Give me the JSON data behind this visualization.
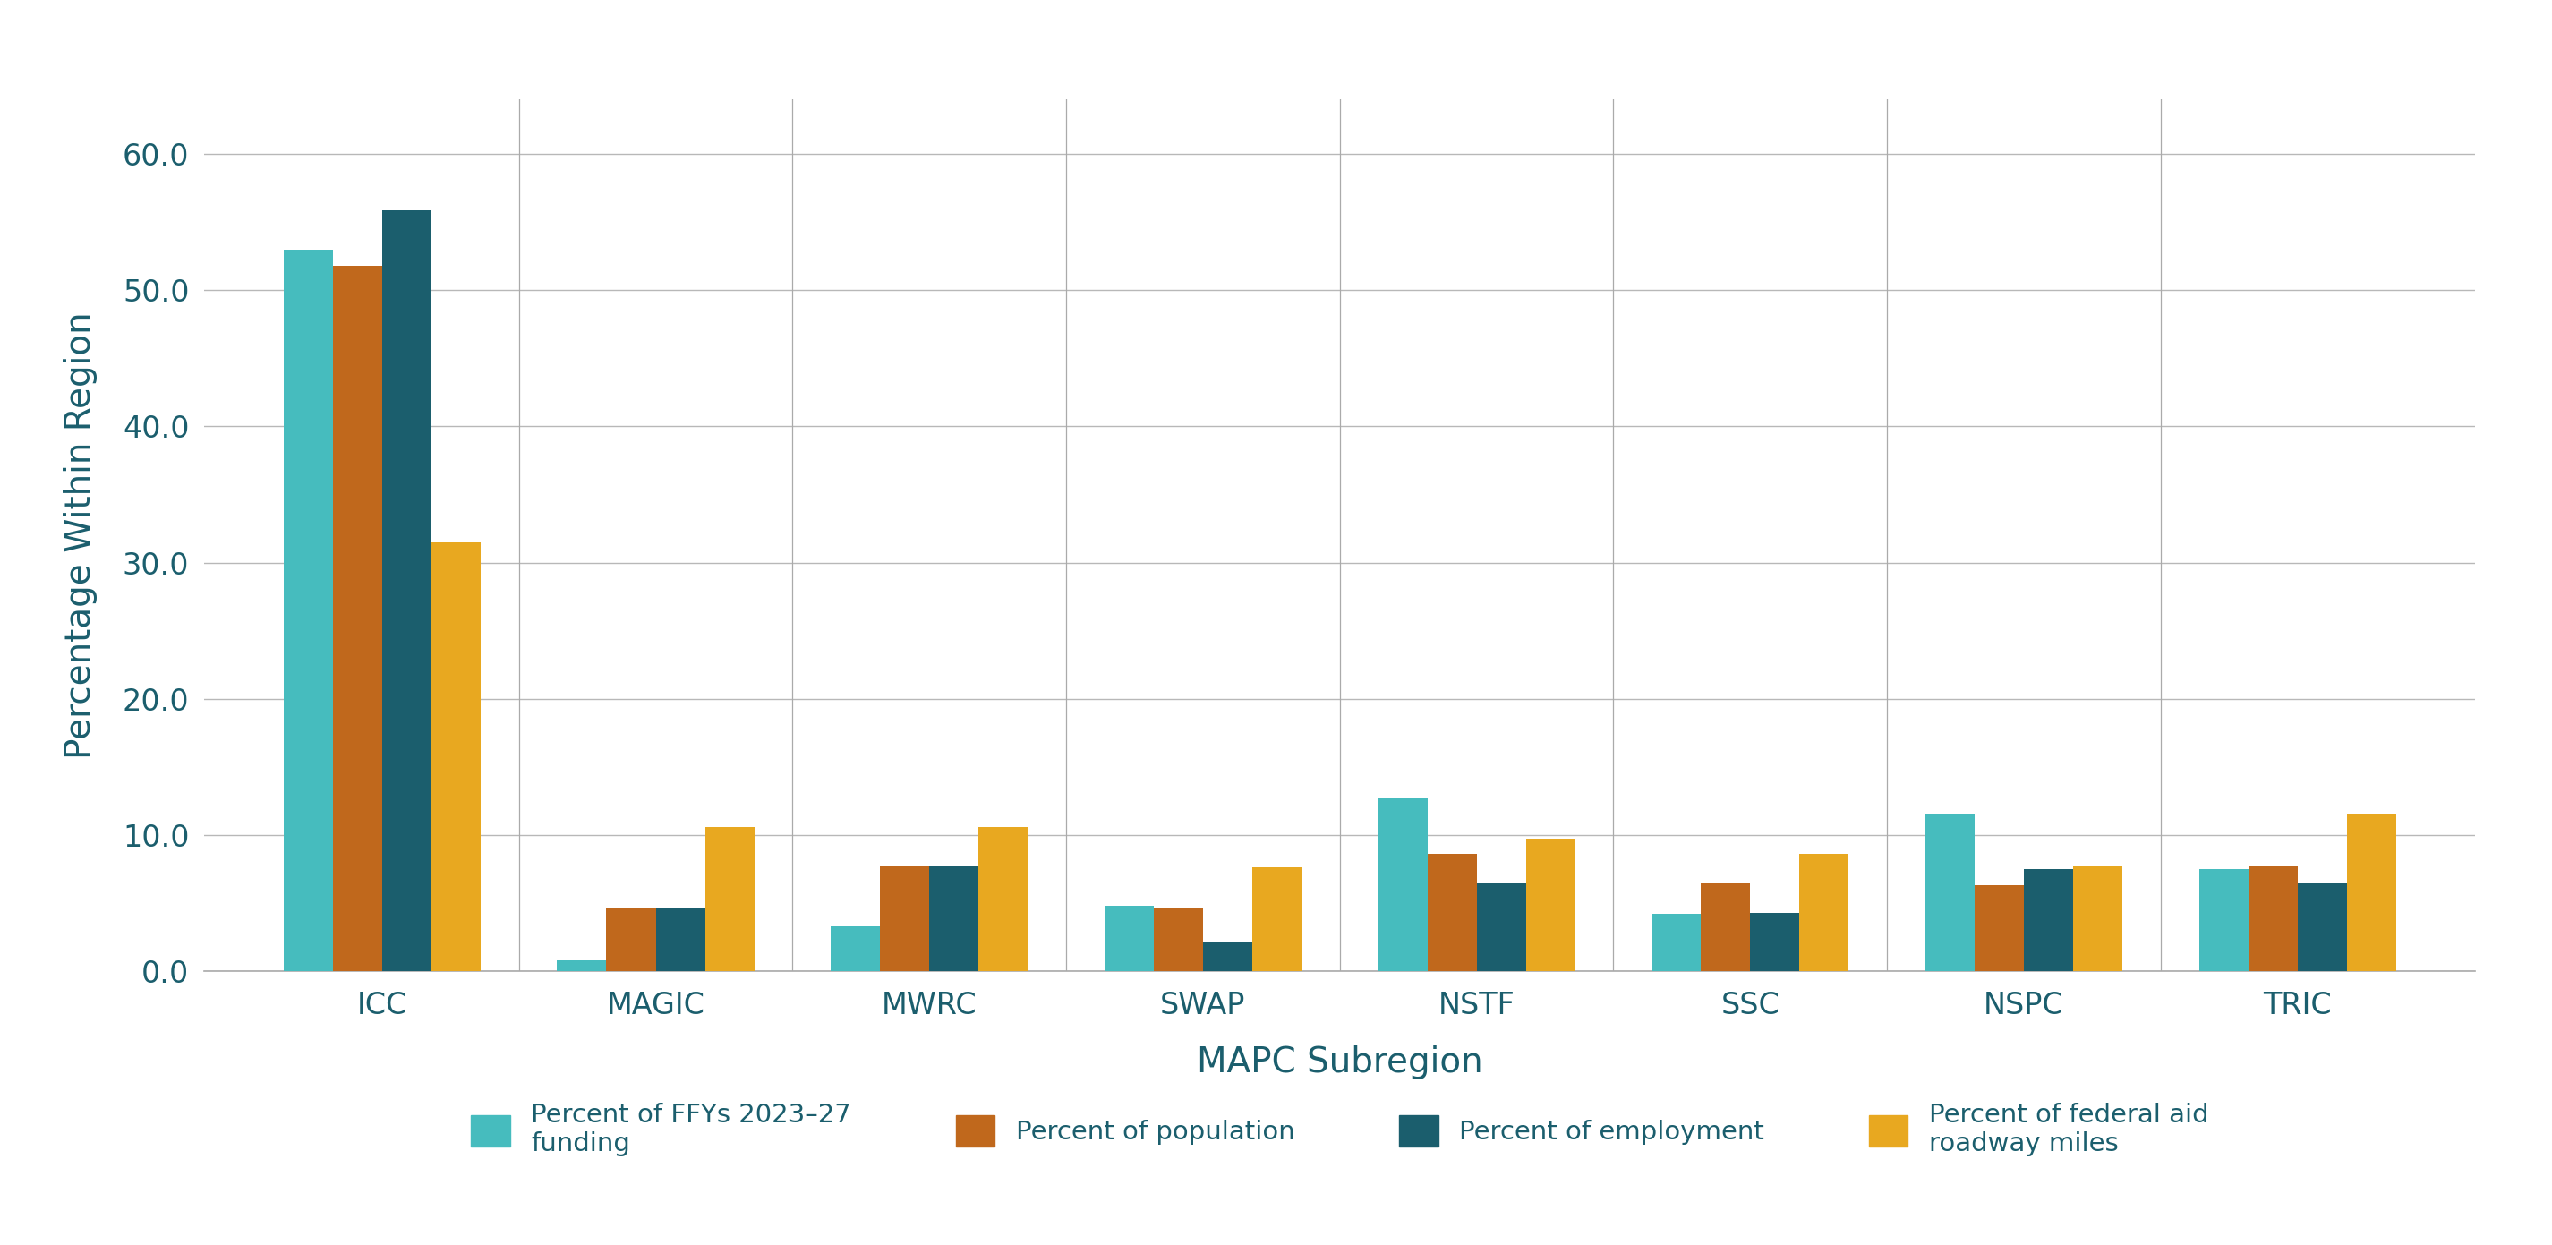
{
  "subregions": [
    "ICC",
    "MAGIC",
    "MWRC",
    "SWAP",
    "NSTF",
    "SSC",
    "NSPC",
    "TRIC"
  ],
  "series": {
    "pct_funding": [
      53.0,
      0.8,
      3.3,
      4.8,
      12.7,
      4.2,
      11.5,
      7.5
    ],
    "pct_population": [
      51.8,
      4.6,
      7.7,
      4.6,
      8.6,
      6.5,
      6.3,
      7.7
    ],
    "pct_employment": [
      55.9,
      4.6,
      7.7,
      2.2,
      6.5,
      4.3,
      7.5,
      6.5
    ],
    "pct_roadway": [
      31.5,
      10.6,
      10.6,
      7.6,
      9.7,
      8.6,
      7.7,
      11.5
    ]
  },
  "colors": {
    "pct_funding": "#46BCBE",
    "pct_population": "#C0681C",
    "pct_employment": "#1B5E6D",
    "pct_roadway": "#E8A820"
  },
  "legend_labels": {
    "pct_funding": "Percent of FFYs 2023–27\nfunding",
    "pct_population": "Percent of population",
    "pct_employment": "Percent of employment",
    "pct_roadway": "Percent of federal aid\nroadway miles"
  },
  "xlabel": "MAPC Subregion",
  "ylabel": "Percentage Within Region",
  "ylim": [
    0,
    64
  ],
  "yticks": [
    0.0,
    10.0,
    20.0,
    30.0,
    40.0,
    50.0,
    60.0
  ],
  "ytick_labels": [
    "0.0",
    "10.0",
    "20.0",
    "30.0",
    "40.0",
    "50.0",
    "60.0"
  ],
  "background_color": "#ffffff",
  "grid_color": "#b8b8b8",
  "tick_color": "#1B5E6D",
  "label_color": "#1B5E6D",
  "bar_width": 0.18,
  "separator_color": "#aaaaaa"
}
